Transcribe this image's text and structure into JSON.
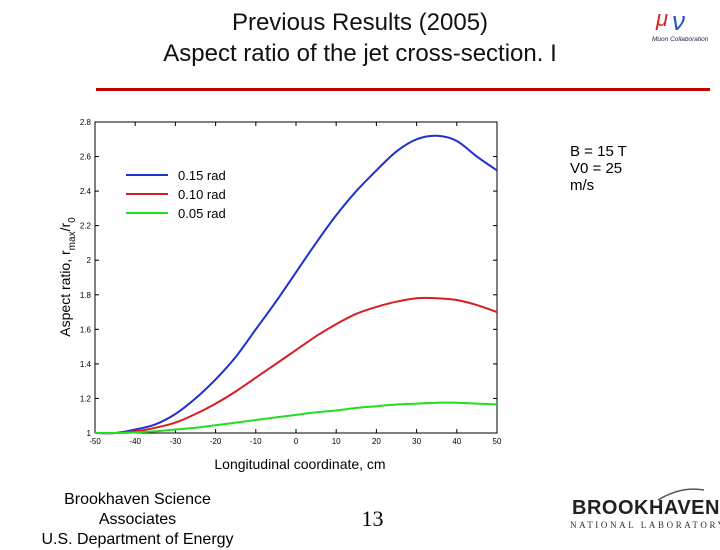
{
  "slide": {
    "title_line1": "Previous Results (2005)",
    "title_line2": "Aspect ratio of the jet cross-section. I",
    "annotation": [
      "B = 15 T",
      "V0 = 25",
      "m/s"
    ],
    "footer_left": [
      "Brookhaven Science",
      "Associates",
      "U.S. Department of Energy"
    ],
    "page_number": "13",
    "logo_right_main": "BROOKHAVEN",
    "logo_right_sub": "NATIONAL LABORATORY",
    "logo_left_text": "Muon Collaboration",
    "accent_color": "#c00000"
  },
  "chart_data": {
    "type": "line",
    "title": "",
    "xlabel": "Longitudinal coordinate, cm",
    "ylabel_main": "Aspect ratio,  r",
    "ylabel_sub1": "max",
    "ylabel_slash": "/r",
    "ylabel_sub2": "0",
    "xlim": [
      -50,
      50
    ],
    "ylim": [
      1,
      2.8
    ],
    "xticks": [
      -50,
      -40,
      -30,
      -20,
      -10,
      0,
      10,
      20,
      30,
      40,
      50
    ],
    "yticks": [
      1,
      1.2,
      1.4,
      1.6,
      1.8,
      2,
      2.2,
      2.4,
      2.6,
      2.8
    ],
    "xtick_labels": [
      "-50",
      "-40",
      "-30",
      "-20",
      "-10",
      "0",
      "10",
      "20",
      "30",
      "40",
      "50"
    ],
    "ytick_labels": [
      "1",
      "1.2",
      "1.4",
      "1.6",
      "1.8",
      "2",
      "2.2",
      "2.4",
      "2.6",
      "2.8"
    ],
    "legend_position": "top-left",
    "series": [
      {
        "name": "0.15 rad",
        "color": "#1f2fd0",
        "x": [
          -50,
          -45,
          -40,
          -35,
          -30,
          -25,
          -20,
          -15,
          -10,
          -5,
          0,
          5,
          10,
          15,
          20,
          25,
          30,
          35,
          40,
          45,
          50
        ],
        "y": [
          1.0,
          1.0,
          1.02,
          1.05,
          1.11,
          1.2,
          1.31,
          1.44,
          1.6,
          1.76,
          1.93,
          2.1,
          2.26,
          2.4,
          2.52,
          2.63,
          2.7,
          2.72,
          2.69,
          2.6,
          2.52
        ]
      },
      {
        "name": "0.10 rad",
        "color": "#d81e1e",
        "x": [
          -50,
          -45,
          -40,
          -35,
          -30,
          -25,
          -20,
          -15,
          -10,
          -5,
          0,
          5,
          10,
          15,
          20,
          25,
          30,
          35,
          40,
          45,
          50
        ],
        "y": [
          1.0,
          1.0,
          1.01,
          1.03,
          1.06,
          1.11,
          1.17,
          1.24,
          1.32,
          1.4,
          1.48,
          1.56,
          1.63,
          1.69,
          1.73,
          1.76,
          1.78,
          1.78,
          1.77,
          1.74,
          1.7
        ]
      },
      {
        "name": "0.05 rad",
        "color": "#22dd22",
        "x": [
          -50,
          -45,
          -40,
          -35,
          -30,
          -25,
          -20,
          -15,
          -10,
          -5,
          0,
          5,
          10,
          15,
          20,
          25,
          30,
          35,
          40,
          45,
          50
        ],
        "y": [
          1.0,
          1.0,
          1.003,
          1.01,
          1.02,
          1.03,
          1.045,
          1.06,
          1.075,
          1.09,
          1.105,
          1.12,
          1.13,
          1.145,
          1.155,
          1.165,
          1.17,
          1.175,
          1.175,
          1.17,
          1.165
        ]
      }
    ]
  }
}
